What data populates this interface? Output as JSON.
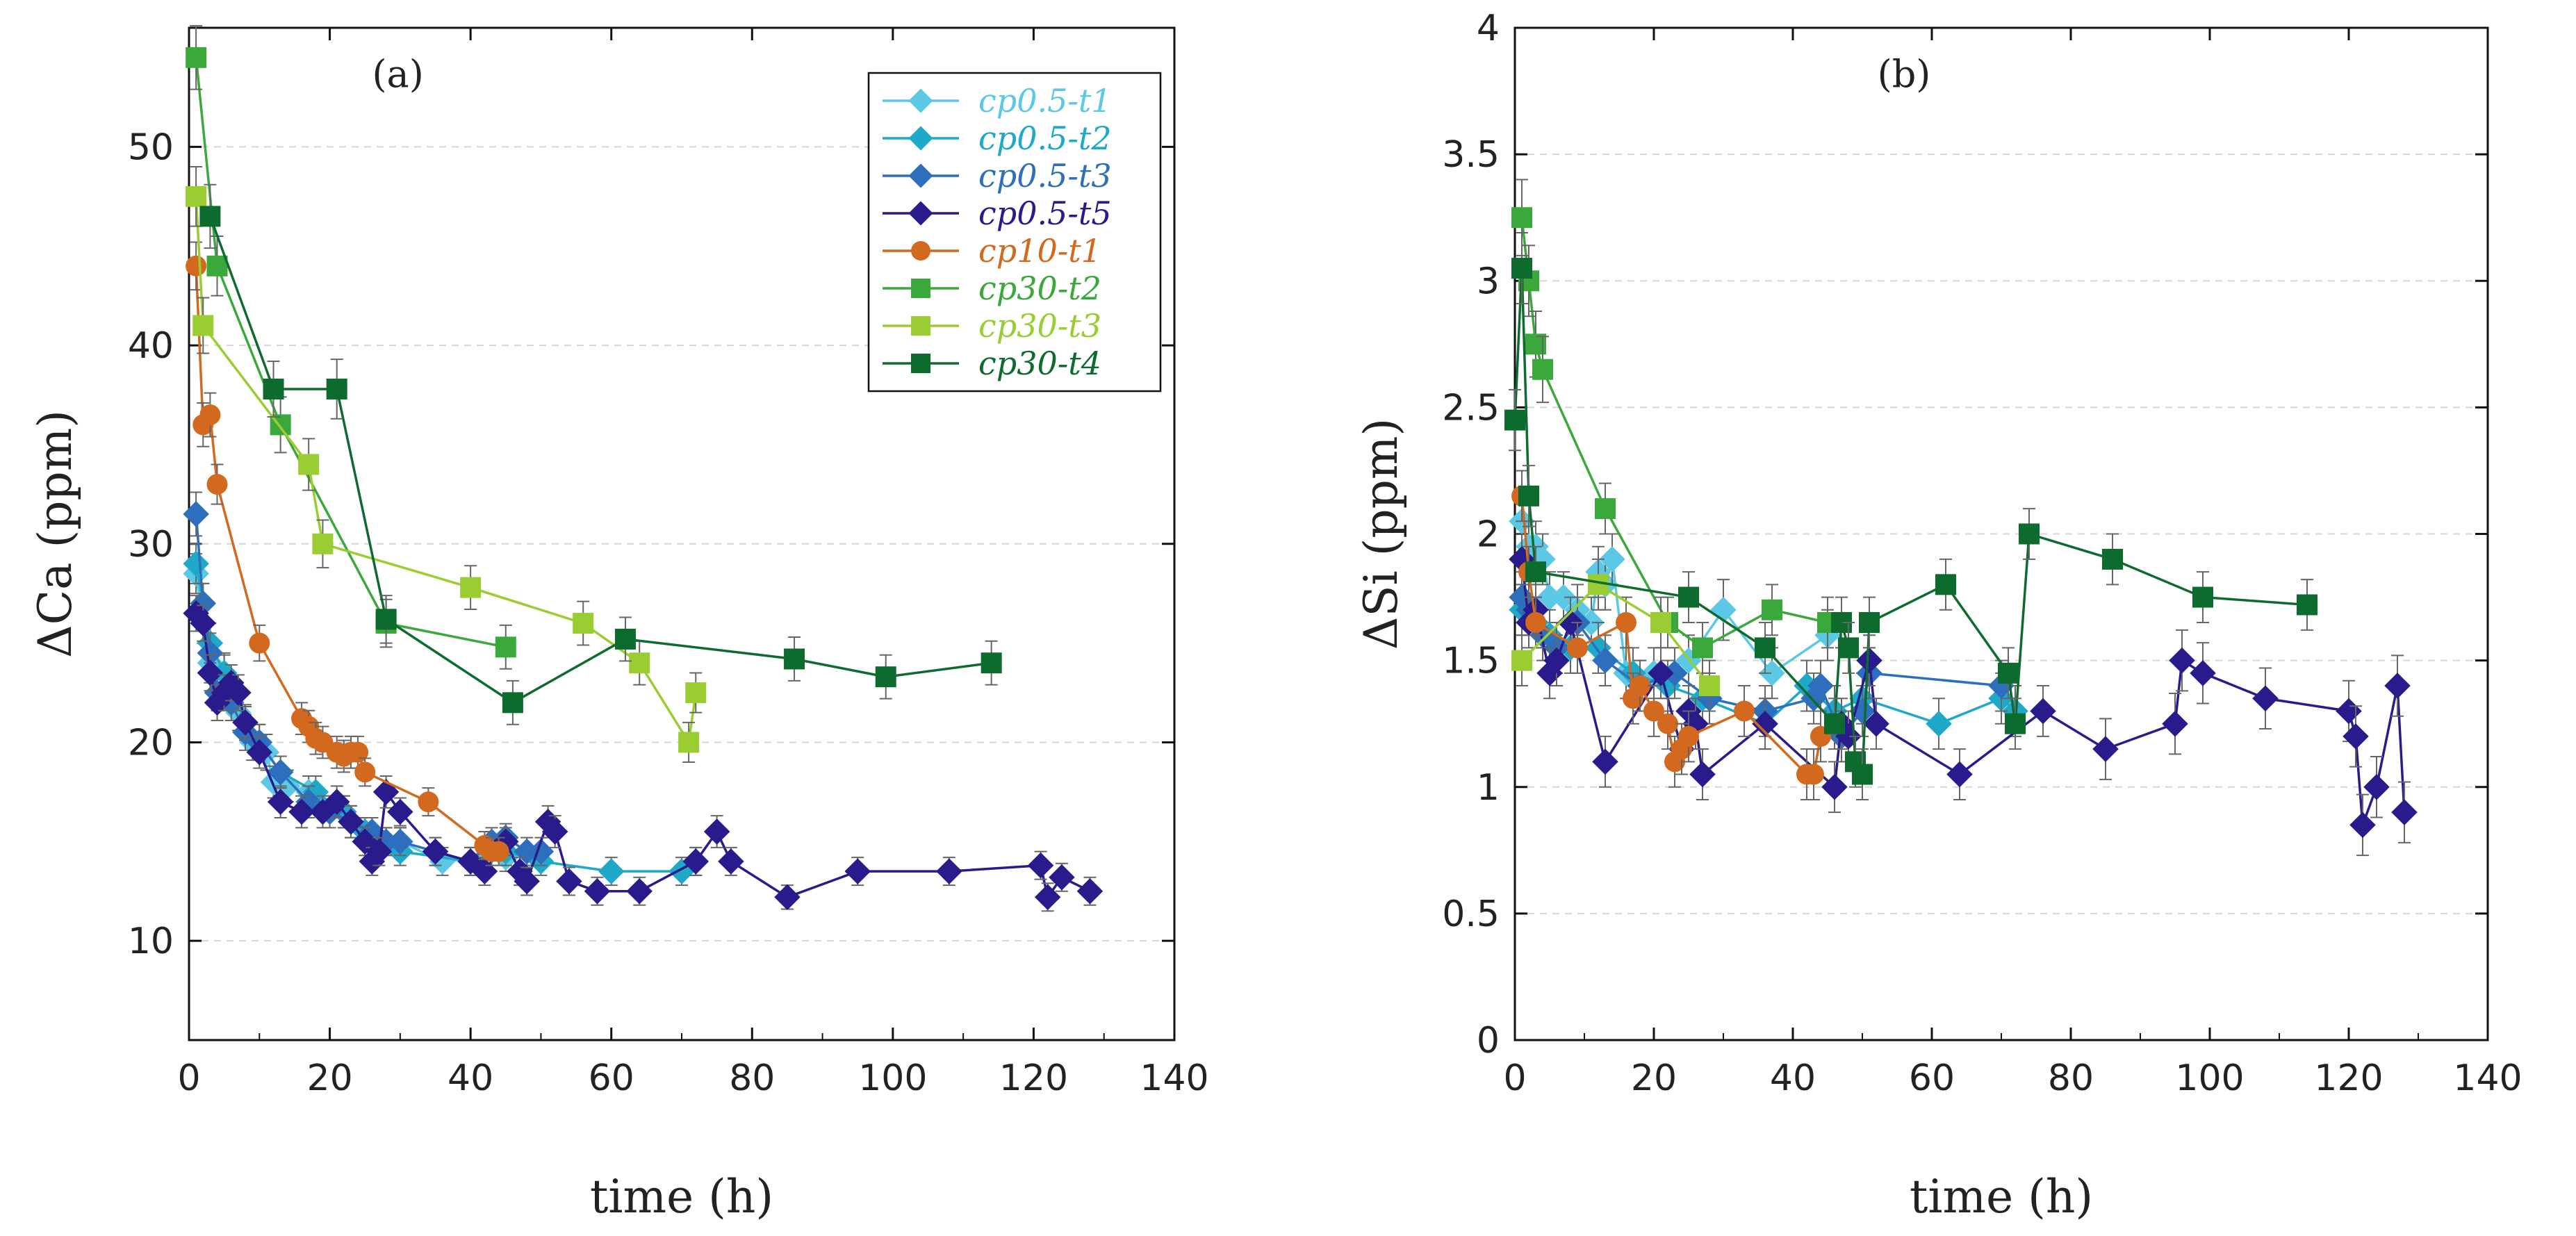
{
  "chart_data": [
    {
      "id": "a",
      "type": "line",
      "panel_label": "(a)",
      "xlabel": "time (h)",
      "ylabel": "ΔCa (ppm)",
      "xlim": [
        0,
        140
      ],
      "ylim": [
        5,
        56
      ],
      "xticks": [
        0,
        20,
        40,
        60,
        80,
        100,
        120,
        140
      ],
      "yticks": [
        10,
        20,
        30,
        40,
        50
      ],
      "grid": "horizontal dashed",
      "legend_position": "top-right",
      "series": [
        {
          "name": "cp0.5-t1",
          "color": "#5bc8e6",
          "marker": "diamond",
          "x": [
            1,
            2,
            3,
            5,
            7,
            9,
            11,
            12,
            14,
            17,
            22,
            26,
            30,
            36,
            42,
            45
          ],
          "y": [
            28.5,
            26,
            24,
            23.5,
            21.5,
            20,
            19.5,
            18,
            17.8,
            17.5,
            16.5,
            15.5,
            15,
            14,
            14.2,
            14.2
          ],
          "err": [
            1.0,
            1.0,
            1.0,
            1.0,
            0.9,
            0.9,
            0.9,
            0.8,
            0.8,
            0.8,
            0.8,
            0.7,
            0.7,
            0.7,
            0.7,
            0.7
          ]
        },
        {
          "name": "cp0.5-t2",
          "color": "#1fa9c9",
          "marker": "diamond",
          "x": [
            1,
            2,
            3,
            5,
            8,
            10,
            13,
            18,
            22,
            25,
            28,
            30,
            40,
            45,
            50,
            60,
            70,
            72
          ],
          "y": [
            29,
            27,
            25,
            23.5,
            21,
            20,
            18.5,
            17.5,
            16.5,
            15.5,
            15,
            14.5,
            14,
            14.5,
            14,
            13.5,
            13.5,
            14
          ],
          "err": [
            1.0,
            1.0,
            1.0,
            0.9,
            0.9,
            0.9,
            0.8,
            0.8,
            0.8,
            0.7,
            0.7,
            0.7,
            0.7,
            0.7,
            0.7,
            0.7,
            0.7,
            0.7
          ]
        },
        {
          "name": "cp0.5-t3",
          "color": "#2d6fbc",
          "marker": "diamond",
          "x": [
            1,
            2,
            3,
            4,
            6,
            8,
            10,
            13,
            17,
            20,
            23,
            26,
            28,
            30,
            35,
            40,
            43,
            45,
            48,
            50
          ],
          "y": [
            31.5,
            27,
            24.5,
            22.5,
            22,
            20.5,
            20,
            18.5,
            17,
            16.5,
            16,
            15.5,
            15,
            15,
            14.5,
            14,
            15,
            15.2,
            14.5,
            14.5
          ],
          "err": [
            1.1,
            1.0,
            1.0,
            0.9,
            0.9,
            0.9,
            0.9,
            0.8,
            0.8,
            0.8,
            0.8,
            0.7,
            0.7,
            0.7,
            0.7,
            0.7,
            0.7,
            0.7,
            0.7,
            0.7
          ]
        },
        {
          "name": "cp0.5-t5",
          "color": "#2a1b8c",
          "marker": "diamond",
          "x": [
            1,
            2,
            3,
            4,
            5,
            6,
            7,
            8,
            10,
            13,
            16,
            19,
            21,
            23,
            25,
            26,
            27,
            28,
            30,
            35,
            40,
            42,
            45,
            47,
            48,
            51,
            52,
            54,
            58,
            64,
            72,
            75,
            77,
            85,
            95,
            108,
            121,
            122,
            124,
            128
          ],
          "y": [
            26.5,
            26,
            23.5,
            22,
            22.5,
            23,
            22.5,
            21,
            19.5,
            17,
            16.5,
            16.5,
            17,
            16,
            15,
            14,
            14.5,
            17.5,
            16.5,
            14.5,
            14,
            13.5,
            15,
            13.5,
            13,
            16,
            15.5,
            13,
            12.5,
            12.5,
            14,
            15.5,
            14,
            12.2,
            13.5,
            13.5,
            13.8,
            12.2,
            13.2,
            12.5
          ],
          "err": [
            0.9,
            0.9,
            0.9,
            0.9,
            0.9,
            0.9,
            0.9,
            0.8,
            0.8,
            0.8,
            0.8,
            0.8,
            0.8,
            0.8,
            0.7,
            0.7,
            0.7,
            0.8,
            0.7,
            0.7,
            0.7,
            0.7,
            0.7,
            0.7,
            0.7,
            0.8,
            0.8,
            0.7,
            0.7,
            0.7,
            0.7,
            0.8,
            0.7,
            0.6,
            0.7,
            0.7,
            0.7,
            0.7,
            0.7,
            0.7
          ]
        },
        {
          "name": "cp10-t1",
          "color": "#d2691e",
          "marker": "circle",
          "x": [
            1,
            2,
            3,
            4,
            10,
            16,
            17,
            18,
            19,
            21,
            22,
            23,
            24,
            25,
            34,
            42,
            43,
            44
          ],
          "y": [
            44,
            36,
            36.5,
            33,
            25,
            21.2,
            20.8,
            20.2,
            20,
            19.5,
            19.3,
            19.5,
            19.5,
            18.5,
            17,
            14.8,
            14.5,
            14.5
          ],
          "err": [
            1.2,
            1.1,
            1.1,
            1.0,
            0.9,
            0.8,
            0.8,
            0.8,
            0.8,
            0.8,
            0.8,
            0.8,
            0.8,
            0.7,
            0.7,
            0.7,
            0.7,
            0.7
          ]
        },
        {
          "name": "cp30-t2",
          "color": "#3aa83a",
          "marker": "square",
          "x": [
            1,
            4,
            13,
            28,
            45
          ],
          "y": [
            54.5,
            44,
            36,
            26,
            24.8
          ],
          "err": [
            1.6,
            1.5,
            1.4,
            1.2,
            1.1
          ]
        },
        {
          "name": "cp30-t3",
          "color": "#9acd32",
          "marker": "square",
          "x": [
            1,
            2,
            17,
            19,
            40,
            56,
            64,
            71,
            72
          ],
          "y": [
            47.5,
            41,
            34,
            30,
            27.8,
            26,
            24,
            20,
            22.5
          ],
          "err": [
            1.5,
            1.4,
            1.3,
            1.2,
            1.1,
            1.1,
            1.1,
            1.0,
            1.0
          ]
        },
        {
          "name": "cp30-t4",
          "color": "#0e6b2e",
          "marker": "square",
          "x": [
            3,
            12,
            21,
            28,
            46,
            62,
            86,
            99,
            114
          ],
          "y": [
            46.5,
            37.8,
            37.8,
            26.2,
            22,
            25.2,
            24.2,
            23.3,
            24
          ],
          "err": [
            1.6,
            1.4,
            1.5,
            1.2,
            1.1,
            1.1,
            1.1,
            1.1,
            1.1
          ]
        }
      ]
    },
    {
      "id": "b",
      "type": "line",
      "panel_label": "(b)",
      "xlabel": "time (h)",
      "ylabel": "ΔSi (ppm)",
      "xlim": [
        0,
        140
      ],
      "ylim": [
        0,
        4
      ],
      "xticks": [
        0,
        20,
        40,
        60,
        80,
        100,
        120,
        140
      ],
      "yticks": [
        0,
        0.5,
        1,
        1.5,
        2,
        2.5,
        3,
        3.5,
        4
      ],
      "grid": "horizontal dashed",
      "legend_position": "none",
      "series": [
        {
          "name": "cp0.5-t1",
          "color": "#5bc8e6",
          "marker": "diamond",
          "x": [
            1,
            2,
            3,
            4,
            5,
            7,
            9,
            11,
            12,
            13,
            14,
            16,
            20,
            25,
            30,
            37,
            45
          ],
          "y": [
            2.05,
            1.95,
            1.95,
            1.9,
            1.75,
            1.75,
            1.7,
            1.65,
            1.85,
            1.8,
            1.9,
            1.45,
            1.45,
            1.5,
            1.7,
            1.45,
            1.6
          ],
          "err": [
            0.1,
            0.1,
            0.1,
            0.1,
            0.1,
            0.1,
            0.1,
            0.1,
            0.1,
            0.1,
            0.1,
            0.1,
            0.1,
            0.1,
            0.12,
            0.1,
            0.1
          ]
        },
        {
          "name": "cp0.5-t2",
          "color": "#1fa9c9",
          "marker": "diamond",
          "x": [
            1,
            3,
            5,
            8,
            12,
            17,
            22,
            27,
            36,
            42,
            46,
            50,
            61,
            70,
            72
          ],
          "y": [
            1.7,
            1.65,
            1.6,
            1.55,
            1.55,
            1.45,
            1.4,
            1.35,
            1.25,
            1.4,
            1.3,
            1.35,
            1.25,
            1.35,
            1.3
          ],
          "err": [
            0.1,
            0.1,
            0.1,
            0.1,
            0.1,
            0.1,
            0.1,
            0.1,
            0.1,
            0.1,
            0.1,
            0.1,
            0.1,
            0.1,
            0.1
          ]
        },
        {
          "name": "cp0.5-t3",
          "color": "#2d6fbc",
          "marker": "diamond",
          "x": [
            1,
            2,
            4,
            6,
            9,
            13,
            18,
            23,
            28,
            36,
            43,
            44,
            47,
            50,
            51,
            70
          ],
          "y": [
            1.75,
            1.7,
            1.6,
            1.55,
            1.65,
            1.5,
            1.4,
            1.45,
            1.35,
            1.3,
            1.35,
            1.4,
            1.2,
            1.3,
            1.45,
            1.4
          ],
          "err": [
            0.1,
            0.1,
            0.1,
            0.1,
            0.1,
            0.1,
            0.1,
            0.1,
            0.1,
            0.1,
            0.1,
            0.1,
            0.1,
            0.1,
            0.1,
            0.1
          ]
        },
        {
          "name": "cp0.5-t5",
          "color": "#2a1b8c",
          "marker": "diamond",
          "x": [
            1,
            2,
            3,
            5,
            6,
            8,
            13,
            21,
            24,
            25,
            26,
            27,
            36,
            46,
            47,
            48,
            51,
            52,
            64,
            76,
            85,
            95,
            96,
            99,
            108,
            120,
            121,
            122,
            124,
            127,
            128
          ],
          "y": [
            1.9,
            1.65,
            1.7,
            1.45,
            1.5,
            1.65,
            1.1,
            1.45,
            1.15,
            1.3,
            1.25,
            1.05,
            1.25,
            1.0,
            1.25,
            1.2,
            1.5,
            1.25,
            1.05,
            1.3,
            1.15,
            1.25,
            1.5,
            1.45,
            1.35,
            1.3,
            1.2,
            0.85,
            1.0,
            1.4,
            0.9
          ],
          "err": [
            0.1,
            0.1,
            0.1,
            0.1,
            0.1,
            0.1,
            0.1,
            0.1,
            0.1,
            0.1,
            0.1,
            0.1,
            0.1,
            0.1,
            0.1,
            0.1,
            0.1,
            0.1,
            0.1,
            0.1,
            0.12,
            0.12,
            0.12,
            0.12,
            0.12,
            0.12,
            0.12,
            0.12,
            0.12,
            0.12,
            0.12
          ]
        },
        {
          "name": "cp10-t1",
          "color": "#d2691e",
          "marker": "circle",
          "x": [
            1,
            2,
            3,
            9,
            16,
            17,
            18,
            20,
            22,
            23,
            24,
            25,
            33,
            42,
            43,
            44
          ],
          "y": [
            2.15,
            1.85,
            1.65,
            1.55,
            1.65,
            1.35,
            1.4,
            1.3,
            1.25,
            1.1,
            1.15,
            1.2,
            1.3,
            1.05,
            1.05,
            1.2
          ],
          "err": [
            0.1,
            0.1,
            0.1,
            0.1,
            0.1,
            0.1,
            0.1,
            0.1,
            0.1,
            0.1,
            0.1,
            0.1,
            0.1,
            0.1,
            0.1,
            0.1
          ]
        },
        {
          "name": "cp30-t2",
          "color": "#3aa83a",
          "marker": "square",
          "x": [
            1,
            2,
            3,
            4,
            13,
            22,
            27,
            37,
            45
          ],
          "y": [
            3.25,
            3.0,
            2.75,
            2.65,
            2.1,
            1.65,
            1.55,
            1.7,
            1.65
          ],
          "err": [
            0.15,
            0.14,
            0.13,
            0.13,
            0.1,
            0.1,
            0.1,
            0.1,
            0.1
          ]
        },
        {
          "name": "cp30-t3",
          "color": "#9acd32",
          "marker": "square",
          "x": [
            1,
            12,
            21,
            28
          ],
          "y": [
            1.5,
            1.8,
            1.65,
            1.4
          ],
          "err": [
            0.1,
            0.1,
            0.1,
            0.1
          ]
        },
        {
          "name": "cp30-t4",
          "color": "#0e6b2e",
          "marker": "square",
          "x": [
            0,
            1,
            2,
            3,
            25,
            36,
            46,
            47,
            48,
            49,
            50,
            51,
            62,
            71,
            72,
            74,
            86,
            99,
            114
          ],
          "y": [
            2.45,
            3.05,
            2.15,
            1.85,
            1.75,
            1.55,
            1.25,
            1.65,
            1.55,
            1.1,
            1.05,
            1.65,
            1.8,
            1.45,
            1.25,
            2.0,
            1.9,
            1.75,
            1.72
          ],
          "err": [
            0.12,
            0.14,
            0.12,
            0.1,
            0.1,
            0.1,
            0.1,
            0.1,
            0.1,
            0.1,
            0.1,
            0.1,
            0.1,
            0.1,
            0.1,
            0.1,
            0.1,
            0.1,
            0.1
          ]
        }
      ]
    }
  ]
}
